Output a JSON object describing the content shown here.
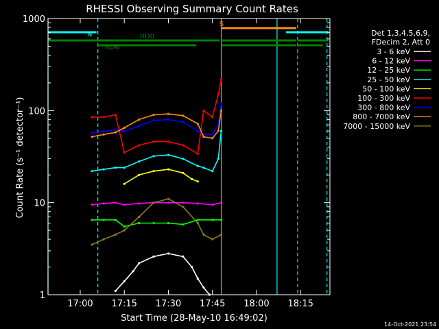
{
  "chart_data": {
    "type": "line",
    "title": "RHESSI Observing Summary Count Rates",
    "xlabel": "Start Time (28-May-10 16:49:02)",
    "ylabel": "Count Rate (s⁻¹ detector⁻¹)",
    "y_scale": "log",
    "ylim": [
      1,
      1000
    ],
    "xlim": [
      "16:49:02",
      "18:25:00"
    ],
    "x_ticks": [
      "17:00",
      "17:15",
      "17:30",
      "17:45",
      "18:00",
      "18:15"
    ],
    "y_ticks": [
      "1",
      "10",
      "100",
      "1000"
    ],
    "grid": false,
    "legend_position": "right",
    "legend_header": [
      "Det 1,3,4,5,6,9,",
      "FDecim 2, Att 0"
    ],
    "footer_timestamp": "14-Oct-2021 23:54",
    "background": "#000000",
    "series": [
      {
        "name": "3 - 6 keV",
        "color": "#ffffff",
        "x": [
          "17:12",
          "17:15",
          "17:18",
          "17:20",
          "17:25",
          "17:30",
          "17:35",
          "17:38",
          "17:40",
          "17:42",
          "17:44"
        ],
        "values": [
          1.1,
          1.4,
          1.8,
          2.2,
          2.6,
          2.8,
          2.6,
          2.0,
          1.5,
          1.2,
          1.0
        ]
      },
      {
        "name": "6 - 12 keV",
        "color": "#ff00ff",
        "x": [
          "17:04",
          "17:08",
          "17:12",
          "17:15",
          "17:20",
          "17:25",
          "17:30",
          "17:35",
          "17:40",
          "17:45",
          "17:48"
        ],
        "values": [
          9.5,
          9.8,
          10.0,
          9.5,
          9.8,
          10.0,
          10.0,
          10.0,
          9.8,
          9.5,
          10.0
        ]
      },
      {
        "name": "12 - 25 keV",
        "color": "#00ff00",
        "x": [
          "17:04",
          "17:08",
          "17:12",
          "17:15",
          "17:20",
          "17:25",
          "17:30",
          "17:35",
          "17:40",
          "17:45",
          "17:48"
        ],
        "values": [
          6.5,
          6.5,
          6.5,
          5.5,
          6.0,
          6.0,
          6.0,
          5.8,
          6.5,
          6.5,
          6.5
        ]
      },
      {
        "name": "25 - 50 keV",
        "color": "#00ffff",
        "x": [
          "17:04",
          "17:08",
          "17:12",
          "17:15",
          "17:20",
          "17:25",
          "17:30",
          "17:35",
          "17:40",
          "17:42",
          "17:45",
          "17:47",
          "17:48"
        ],
        "values": [
          22,
          23,
          24,
          24,
          28,
          32,
          33,
          30,
          25,
          24,
          22,
          30,
          60
        ]
      },
      {
        "name": "50 - 100 keV",
        "color": "#ffff00",
        "x": [
          "17:15",
          "17:20",
          "17:25",
          "17:30",
          "17:35",
          "17:38",
          "17:40"
        ],
        "values": [
          16,
          20,
          22,
          23,
          21,
          18,
          17
        ]
      },
      {
        "name": "100 - 300 keV",
        "color": "#ff0000",
        "x": [
          "17:04",
          "17:08",
          "17:12",
          "17:15",
          "17:20",
          "17:25",
          "17:30",
          "17:35",
          "17:40",
          "17:42",
          "17:45",
          "17:47",
          "17:48"
        ],
        "values": [
          85,
          85,
          90,
          35,
          42,
          46,
          46,
          42,
          34,
          100,
          85,
          150,
          220
        ]
      },
      {
        "name": "300 - 800 keV",
        "color": "#0000ff",
        "x": [
          "17:04",
          "17:08",
          "17:12",
          "17:15",
          "17:20",
          "17:25",
          "17:30",
          "17:35",
          "17:40",
          "17:42",
          "17:45",
          "17:47",
          "17:48"
        ],
        "values": [
          57,
          60,
          62,
          60,
          68,
          78,
          80,
          75,
          60,
          55,
          55,
          70,
          120
        ]
      },
      {
        "name": "800 - 7000 keV",
        "color": "#ff8c1a",
        "x": [
          "17:04",
          "17:08",
          "17:12",
          "17:15",
          "17:20",
          "17:25",
          "17:30",
          "17:35",
          "17:40",
          "17:42",
          "17:45",
          "17:47",
          "17:48"
        ],
        "values": [
          52,
          55,
          58,
          65,
          80,
          90,
          92,
          88,
          72,
          52,
          50,
          60,
          100
        ]
      },
      {
        "name": "7000 - 15000 keV",
        "color": "#8b7d1a",
        "x": [
          "17:04",
          "17:08",
          "17:12",
          "17:15",
          "17:20",
          "17:25",
          "17:30",
          "17:35",
          "17:40",
          "17:42",
          "17:45",
          "17:48"
        ],
        "values": [
          3.5,
          4.0,
          4.5,
          5.0,
          7.0,
          10.0,
          11.0,
          9.0,
          6.0,
          4.5,
          4.0,
          4.5
        ]
      }
    ],
    "annotations": [
      {
        "label": "N",
        "color": "#00ffff"
      },
      {
        "label": "RD0",
        "color": "#008000"
      },
      {
        "label": "RD6",
        "color": "#008000"
      },
      {
        "label": "S",
        "color": "#ff8c1a"
      }
    ],
    "status_bars": {
      "N": {
        "color": "#00ffff",
        "intervals": [
          [
            "16:49:02",
            "17:06"
          ],
          [
            "18:10",
            "18:25"
          ]
        ]
      },
      "RD0": {
        "color": "#008000",
        "intervals": [
          [
            "16:49:02",
            "17:48"
          ],
          [
            "17:48",
            "18:14"
          ],
          [
            "18:14",
            "18:25"
          ]
        ]
      },
      "RD6": {
        "color": "#008000",
        "intervals": [
          [
            "17:06",
            "17:40"
          ],
          [
            "17:48",
            "18:14"
          ],
          [
            "18:14",
            "18:23"
          ]
        ]
      },
      "S": {
        "color": "#ff8c1a",
        "intervals": [
          [
            "17:48",
            "18:14"
          ]
        ]
      }
    },
    "vertical_markers": [
      {
        "time": "16:49:02",
        "color": "#00ffff",
        "style": "solid"
      },
      {
        "time": "17:06",
        "color": "#00ffff",
        "style": "dashed"
      },
      {
        "time": "17:48",
        "color": "#ff8c1a",
        "style": "solid"
      },
      {
        "time": "18:07",
        "color": "#00ffff",
        "style": "solid"
      },
      {
        "time": "18:14",
        "color": "#ff8c1a",
        "style": "dashed"
      },
      {
        "time": "18:24",
        "color": "#00ffff",
        "style": "dashed"
      }
    ]
  }
}
